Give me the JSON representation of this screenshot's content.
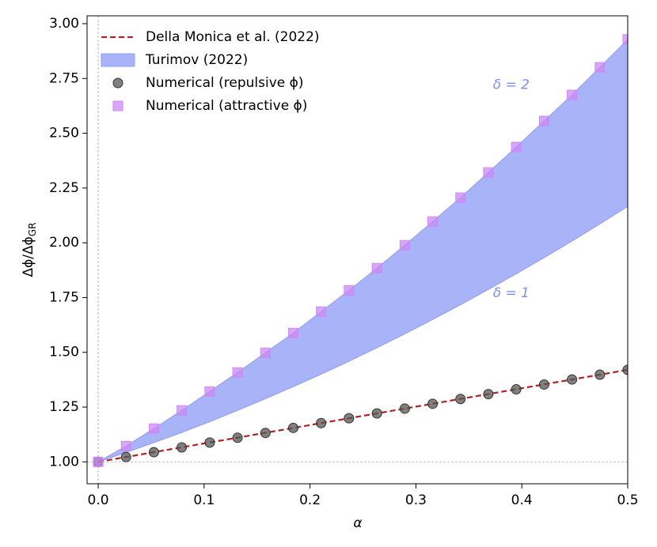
{
  "chart_data": {
    "type": "line",
    "xlabel": "α",
    "ylabel": {
      "text": "Δϕ/Δϕ",
      "sub": "GR"
    },
    "xlim": [
      -0.0105,
      0.5
    ],
    "ylim": [
      0.9,
      3.036
    ],
    "xticks": [
      {
        "value": 0,
        "label": "0.0"
      },
      0.1,
      0.2,
      0.3,
      0.4,
      0.5
    ],
    "yticks": [
      {
        "value": 1,
        "label": "1.00"
      },
      1.25,
      {
        "value": 1.5,
        "label": "1.50"
      },
      1.75,
      {
        "value": 2,
        "label": "2.00"
      },
      2.25,
      {
        "value": 2.5,
        "label": "2.50"
      },
      2.75,
      {
        "value": 3,
        "label": "3.00"
      }
    ],
    "reference_lines": {
      "x": 0,
      "y": 1
    },
    "legend": "upper left",
    "annotations": [
      {
        "text": "δ = 2",
        "x": 0.39,
        "y": 2.72,
        "color": "#7f8ff0"
      },
      {
        "text": "δ = 1",
        "x": 0.39,
        "y": 1.77,
        "color": "#7f8ff0"
      }
    ],
    "series": [
      {
        "name": "Della Monica et al. (2022)",
        "type": "line",
        "dash": true,
        "color": "#b22222",
        "x": [
          0,
          0.5
        ],
        "values": [
          1.0,
          1.42
        ]
      },
      {
        "name": "Turimov (2022)",
        "type": "band",
        "color": "#a9b3f7",
        "x": [
          0,
          0.0263,
          0.0526,
          0.0789,
          0.1053,
          0.1316,
          0.1579,
          0.1842,
          0.2105,
          0.2368,
          0.2632,
          0.2895,
          0.3158,
          0.3421,
          0.3684,
          0.3947,
          0.4211,
          0.4474,
          0.4737,
          0.5
        ],
        "lower": [
          1.0,
          1.043,
          1.088,
          1.134,
          1.183,
          1.235,
          1.288,
          1.343,
          1.4,
          1.459,
          1.521,
          1.584,
          1.65,
          1.717,
          1.787,
          1.858,
          1.932,
          2.008,
          2.086,
          2.166
        ],
        "upper": [
          1.0,
          1.072,
          1.152,
          1.235,
          1.321,
          1.408,
          1.498,
          1.588,
          1.686,
          1.783,
          1.884,
          1.989,
          2.097,
          2.206,
          2.321,
          2.437,
          2.556,
          2.675,
          2.801,
          2.928
        ]
      },
      {
        "name": "Numerical (repulsive ϕ)",
        "type": "scatter",
        "marker": "circle",
        "color": "#555555",
        "x": [
          0,
          0.0263,
          0.0526,
          0.0789,
          0.1053,
          0.1316,
          0.1579,
          0.1842,
          0.2105,
          0.2368,
          0.2632,
          0.2895,
          0.3158,
          0.3421,
          0.3684,
          0.3947,
          0.4211,
          0.4474,
          0.4737,
          0.5
        ],
        "values": [
          1.0,
          1.022,
          1.044,
          1.066,
          1.088,
          1.11,
          1.132,
          1.155,
          1.177,
          1.199,
          1.221,
          1.243,
          1.265,
          1.287,
          1.309,
          1.331,
          1.353,
          1.376,
          1.398,
          1.42
        ]
      },
      {
        "name": "Numerical (attractive ϕ)",
        "type": "scatter",
        "marker": "square",
        "color": "#cc88f5",
        "x": [
          0,
          0.0263,
          0.0526,
          0.0789,
          0.1053,
          0.1316,
          0.1579,
          0.1842,
          0.2105,
          0.2368,
          0.2632,
          0.2895,
          0.3158,
          0.3421,
          0.3684,
          0.3947,
          0.4211,
          0.4474,
          0.4737,
          0.5
        ],
        "values": [
          1.0,
          1.072,
          1.152,
          1.235,
          1.321,
          1.408,
          1.498,
          1.588,
          1.686,
          1.783,
          1.884,
          1.989,
          2.097,
          2.206,
          2.321,
          2.437,
          2.556,
          2.675,
          2.801,
          2.928
        ]
      }
    ]
  }
}
